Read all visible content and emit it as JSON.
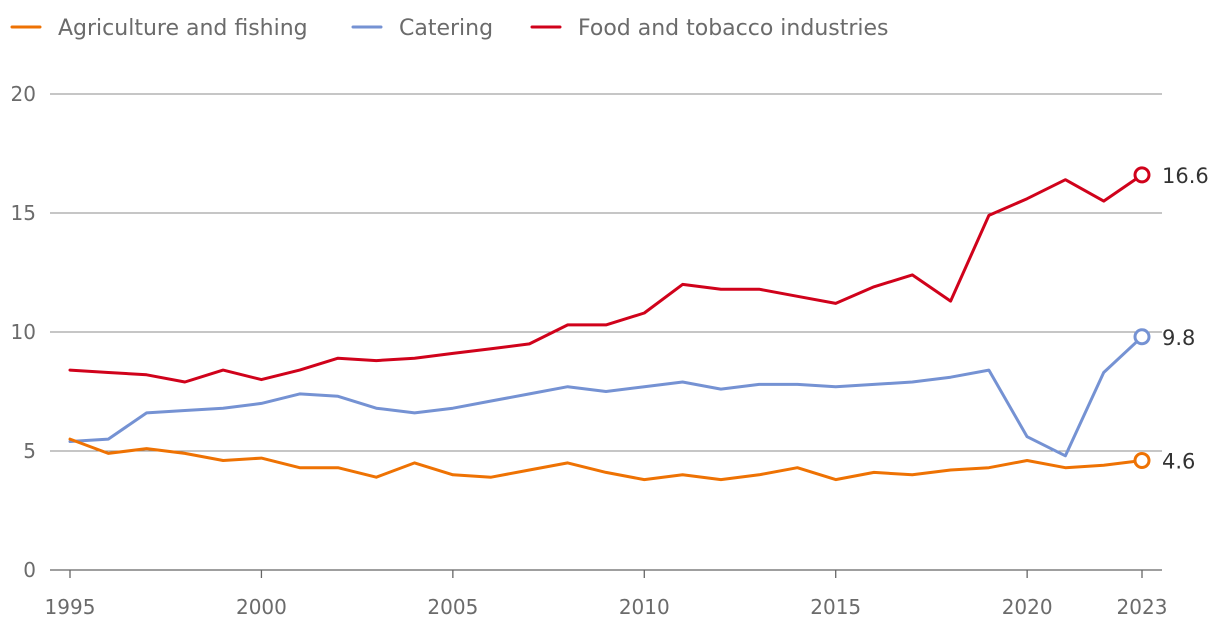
{
  "chart_data": {
    "type": "line",
    "title": "",
    "xlabel": "",
    "ylabel": "",
    "ylim": [
      0,
      20
    ],
    "yticks": [
      0,
      5,
      10,
      15,
      20
    ],
    "xlim": [
      1995,
      2023
    ],
    "xticks": [
      1995,
      2000,
      2005,
      2010,
      2015,
      2020,
      2023
    ],
    "grid": true,
    "legend_position": "top-left",
    "x": [
      1995,
      1996,
      1997,
      1998,
      1999,
      2000,
      2001,
      2002,
      2003,
      2004,
      2005,
      2006,
      2007,
      2008,
      2009,
      2010,
      2011,
      2012,
      2013,
      2014,
      2015,
      2016,
      2017,
      2018,
      2019,
      2020,
      2021,
      2022,
      2023
    ],
    "series": [
      {
        "name": "Agriculture and fishing",
        "color": "#ee7203",
        "values": [
          5.5,
          4.9,
          5.1,
          4.9,
          4.6,
          4.7,
          4.3,
          4.3,
          3.9,
          4.5,
          4.0,
          3.9,
          4.2,
          4.5,
          4.1,
          3.8,
          4.0,
          3.8,
          4.0,
          4.3,
          3.8,
          4.1,
          4.0,
          4.2,
          4.3,
          4.6,
          4.3,
          4.4,
          4.6
        ],
        "end_label": "4.6"
      },
      {
        "name": "Catering",
        "color": "#7592d3",
        "values": [
          5.4,
          5.5,
          6.6,
          6.7,
          6.8,
          7.0,
          7.4,
          7.3,
          6.8,
          6.6,
          6.8,
          7.1,
          7.4,
          7.7,
          7.5,
          7.7,
          7.9,
          7.6,
          7.8,
          7.8,
          7.7,
          7.8,
          7.9,
          8.1,
          8.4,
          5.6,
          4.8,
          8.3,
          9.8
        ],
        "end_label": "9.8"
      },
      {
        "name": "Food and tobacco industries",
        "color": "#d0021b",
        "values": [
          8.4,
          8.3,
          8.2,
          7.9,
          8.4,
          8.0,
          8.4,
          8.9,
          8.8,
          8.9,
          9.1,
          9.3,
          9.5,
          10.3,
          10.3,
          10.8,
          12.0,
          11.8,
          11.8,
          11.5,
          11.2,
          11.9,
          12.4,
          11.3,
          14.9,
          15.6,
          16.4,
          15.5,
          16.6
        ],
        "end_label": "16.6"
      }
    ]
  }
}
